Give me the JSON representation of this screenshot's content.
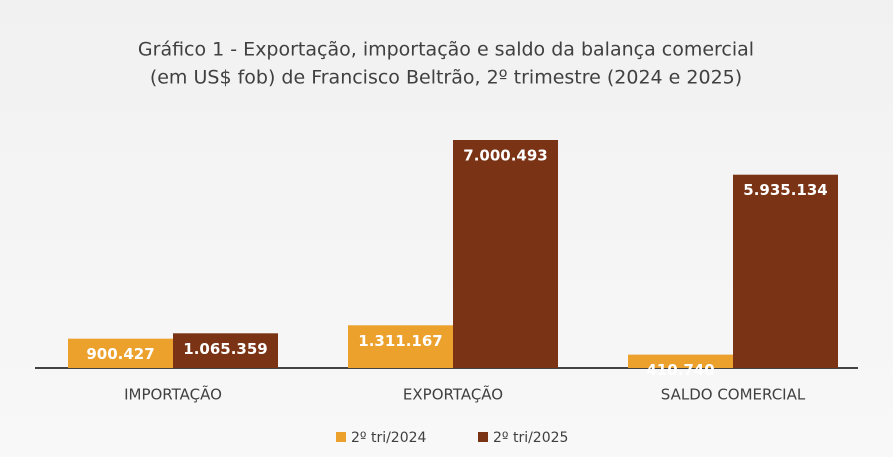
{
  "chart_data": {
    "type": "bar",
    "title": [
      "Gráfico 1 - Exportação, importação e saldo da balança comercial",
      "(em US$ fob) de Francisco Beltrão, 2º trimestre (2024 e 2025)"
    ],
    "categories": [
      "IMPORTAÇÃO",
      "EXPORTAÇÃO",
      "SALDO COMERCIAL"
    ],
    "series": [
      {
        "name": "2º tri/2024",
        "color": "#eba12c",
        "values": [
          900427,
          1311167,
          410740
        ],
        "value_labels": [
          "900.427",
          "1.311.167",
          "410.740"
        ]
      },
      {
        "name": "2º tri/2025",
        "color": "#7a3315",
        "values": [
          1065359,
          7000493,
          5935134
        ],
        "value_labels": [
          "1.065.359",
          "7.000.493",
          "5.935.134"
        ]
      }
    ],
    "legend": "bottom",
    "grid": false
  }
}
